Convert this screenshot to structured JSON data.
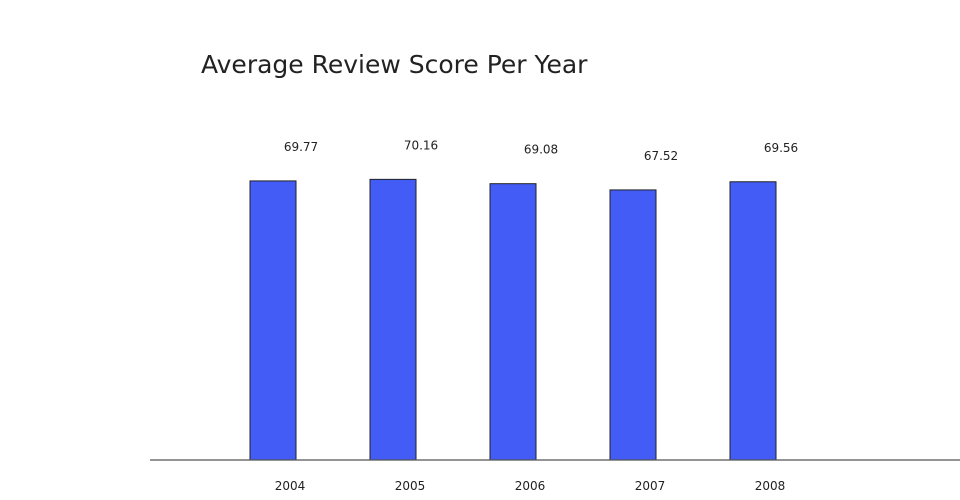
{
  "chart_data": {
    "type": "bar",
    "title": "Average Review Score Per Year",
    "xlabel": "",
    "ylabel": "",
    "categories": [
      "2004",
      "2005",
      "2006",
      "2007",
      "2008"
    ],
    "values": [
      69.77,
      70.16,
      69.08,
      67.52,
      69.56
    ],
    "value_labels": [
      "69.77",
      "70.16",
      "69.08",
      "67.52",
      "69.56"
    ],
    "ylim": [
      0,
      100
    ],
    "grid": false,
    "legend": "none",
    "bar_color": "#425cf5",
    "bar_outline_color": "#222222"
  }
}
